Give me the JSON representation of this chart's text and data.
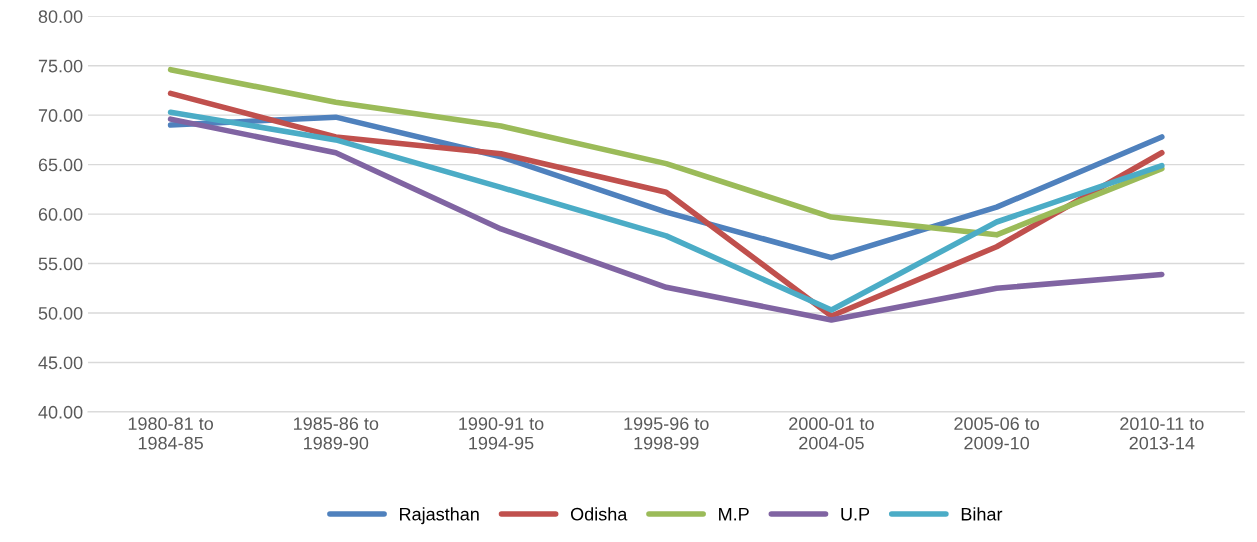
{
  "chart_data": {
    "type": "line",
    "categories": [
      "1980-81 to\n1984-85",
      "1985-86 to\n1989-90",
      "1990-91 to\n1994-95",
      "1995-96 to\n1998-99",
      "2000-01 to\n2004-05",
      "2005-06 to\n2009-10",
      "2010-11 to\n2013-14"
    ],
    "series": [
      {
        "name": "Rajasthan",
        "color": "#4f81bd",
        "values": [
          69.0,
          69.8,
          65.8,
          60.2,
          55.6,
          60.7,
          67.8
        ]
      },
      {
        "name": "Odisha",
        "color": "#c0504d",
        "values": [
          72.2,
          67.8,
          66.1,
          62.2,
          49.7,
          56.7,
          66.2
        ]
      },
      {
        "name": "M.P",
        "color": "#9bbb59",
        "values": [
          74.6,
          71.3,
          68.9,
          65.1,
          59.7,
          57.9,
          64.6
        ]
      },
      {
        "name": "U.P",
        "color": "#8064a2",
        "values": [
          69.6,
          66.2,
          58.5,
          52.6,
          49.3,
          52.5,
          53.9
        ]
      },
      {
        "name": "Bihar",
        "color": "#4bacc6",
        "values": [
          70.3,
          67.5,
          62.7,
          57.8,
          50.3,
          59.2,
          64.9
        ]
      }
    ],
    "ylim": [
      40,
      80
    ],
    "yticks": [
      {
        "value": 40,
        "label": "40.00"
      },
      {
        "value": 45,
        "label": "45.00"
      },
      {
        "value": 50,
        "label": "50.00"
      },
      {
        "value": 55,
        "label": "55.00"
      },
      {
        "value": 60,
        "label": "60.00"
      },
      {
        "value": 65,
        "label": "65.00"
      },
      {
        "value": 70,
        "label": "70.00"
      },
      {
        "value": 75,
        "label": "75.00"
      },
      {
        "value": 80,
        "label": "80.00"
      }
    ],
    "grid": "y",
    "legend": "bottom",
    "marker": "none",
    "line_style": "solid"
  }
}
